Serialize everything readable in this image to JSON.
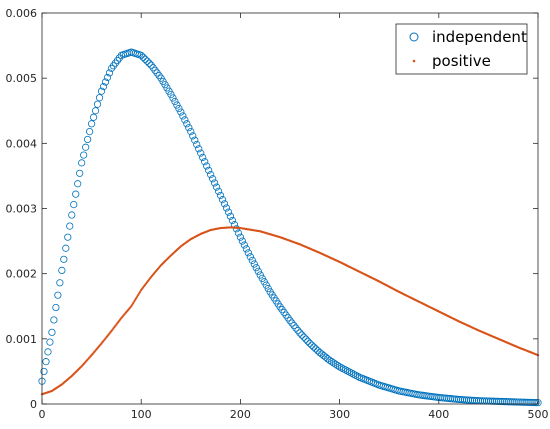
{
  "chart_data": {
    "type": "scatter",
    "title": "",
    "xlabel": "",
    "ylabel": "",
    "xlim": [
      0,
      500
    ],
    "ylim": [
      0,
      0.006
    ],
    "grid": false,
    "legend_position": "top-right",
    "x_ticks": [
      "0",
      "100",
      "200",
      "300",
      "400",
      "500"
    ],
    "y_ticks": [
      "0",
      "0.001",
      "0.002",
      "0.003",
      "0.004",
      "0.005",
      "0.006"
    ],
    "x_tick_values": [
      0,
      100,
      200,
      300,
      400,
      500
    ],
    "y_tick_values": [
      0,
      0.001,
      0.002,
      0.003,
      0.004,
      0.005,
      0.006
    ],
    "series": [
      {
        "name": "independent",
        "marker": "circle-open",
        "color": "#0072bd",
        "x": [
          0,
          10,
          20,
          30,
          40,
          50,
          60,
          70,
          80,
          90,
          100,
          110,
          120,
          130,
          140,
          150,
          160,
          170,
          180,
          190,
          200,
          210,
          220,
          230,
          240,
          250,
          260,
          270,
          280,
          290,
          300,
          320,
          340,
          360,
          380,
          400,
          420,
          440,
          460,
          480,
          500
        ],
        "y": [
          0.00035,
          0.0011,
          0.00205,
          0.0029,
          0.0037,
          0.0043,
          0.0048,
          0.00515,
          0.00535,
          0.0054,
          0.00535,
          0.0052,
          0.005,
          0.00475,
          0.00448,
          0.00418,
          0.00385,
          0.00352,
          0.0032,
          0.00288,
          0.00256,
          0.00226,
          0.00198,
          0.00172,
          0.00149,
          0.00128,
          0.00109,
          0.00093,
          0.00079,
          0.00067,
          0.00057,
          0.00041,
          0.00029,
          0.0002,
          0.00014,
          0.0001,
          7e-05,
          5e-05,
          4e-05,
          3e-05,
          2e-05
        ]
      },
      {
        "name": "positive",
        "marker": "dot",
        "color": "#d95319",
        "x": [
          0,
          10,
          20,
          30,
          40,
          50,
          60,
          70,
          80,
          90,
          100,
          110,
          120,
          130,
          140,
          150,
          160,
          170,
          180,
          190,
          200,
          220,
          240,
          260,
          280,
          300,
          320,
          340,
          360,
          380,
          400,
          420,
          440,
          460,
          480,
          500
        ],
        "y": [
          0.00015,
          0.0002,
          0.0003,
          0.00043,
          0.00058,
          0.00075,
          0.00093,
          0.00112,
          0.00132,
          0.0015,
          0.00175,
          0.00195,
          0.00213,
          0.00228,
          0.00242,
          0.00253,
          0.00261,
          0.00267,
          0.0027,
          0.00271,
          0.0027,
          0.00265,
          0.00256,
          0.00245,
          0.00232,
          0.00218,
          0.00203,
          0.00188,
          0.00172,
          0.00157,
          0.00142,
          0.00127,
          0.00113,
          0.001,
          0.00087,
          0.00075
        ]
      }
    ]
  }
}
